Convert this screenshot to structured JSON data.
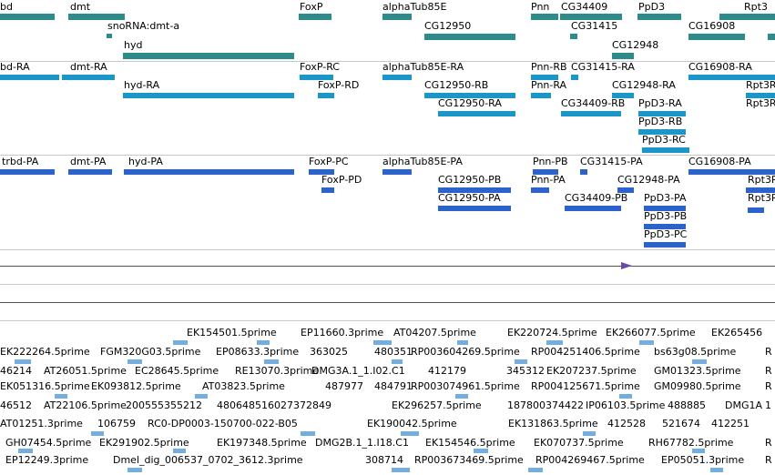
{
  "colors": {
    "gene": "#2e8b8b",
    "transcript": "#1a96c8",
    "protein": "#2b62cc",
    "est": "#74aee0",
    "divider": "#c8c8c8",
    "line": "#555555",
    "marker": "#6a4aa8"
  },
  "gene_track": [
    {
      "id": "g0",
      "label": "bd",
      "bar": true
    },
    {
      "id": "g1",
      "label": "dmt",
      "bar": true
    },
    {
      "id": "g2",
      "label": "snoRNA:dmt-a",
      "bar": true
    },
    {
      "id": "g3",
      "label": "hyd",
      "bar": true
    },
    {
      "id": "g4",
      "label": "FoxP",
      "bar": true
    },
    {
      "id": "g5",
      "label": "alphaTub85E",
      "bar": true
    },
    {
      "id": "g6",
      "label": "CG12950",
      "bar": true
    },
    {
      "id": "g7",
      "label": "Pnn",
      "bar": true
    },
    {
      "id": "g8",
      "label": "CG34409",
      "bar": true
    },
    {
      "id": "g9",
      "label": "CG31415",
      "bar": true
    },
    {
      "id": "g10",
      "label": "PpD3",
      "bar": true
    },
    {
      "id": "g11",
      "label": "CG12948",
      "bar": true
    },
    {
      "id": "g12",
      "label": "CG16908",
      "bar": true
    },
    {
      "id": "g13",
      "label": "Rpt3",
      "bar": true
    }
  ],
  "transcript_track": [
    {
      "id": "t0",
      "label": "bd-RA"
    },
    {
      "id": "t1",
      "label": "dmt-RA"
    },
    {
      "id": "t2",
      "label": "hyd-RA"
    },
    {
      "id": "t3",
      "label": "FoxP-RC"
    },
    {
      "id": "t4",
      "label": "FoxP-RD"
    },
    {
      "id": "t5",
      "label": "alphaTub85E-RA"
    },
    {
      "id": "t6",
      "label": "CG12950-RB"
    },
    {
      "id": "t7",
      "label": "CG12950-RA"
    },
    {
      "id": "t8",
      "label": "Pnn-RB"
    },
    {
      "id": "t9",
      "label": "Pnn-RA"
    },
    {
      "id": "t10",
      "label": "CG31415-RA"
    },
    {
      "id": "t11",
      "label": "CG34409-RB"
    },
    {
      "id": "t12",
      "label": "CG12948-RA"
    },
    {
      "id": "t13",
      "label": "PpD3-RA"
    },
    {
      "id": "t14",
      "label": "PpD3-RB"
    },
    {
      "id": "t15",
      "label": "PpD3-RC"
    },
    {
      "id": "t16",
      "label": "CG16908-RA"
    },
    {
      "id": "t17",
      "label": "Rpt3R"
    },
    {
      "id": "t18",
      "label": "Rpt3R"
    }
  ],
  "protein_track": [
    {
      "id": "p0",
      "label": "trbd-PA"
    },
    {
      "id": "p1",
      "label": "dmt-PA"
    },
    {
      "id": "p2",
      "label": "hyd-PA"
    },
    {
      "id": "p3",
      "label": "FoxP-PC"
    },
    {
      "id": "p4",
      "label": "FoxP-PD"
    },
    {
      "id": "p5",
      "label": "alphaTub85E-PA"
    },
    {
      "id": "p6",
      "label": "CG12950-PB"
    },
    {
      "id": "p7",
      "label": "CG12950-PA"
    },
    {
      "id": "p8",
      "label": "Pnn-PB"
    },
    {
      "id": "p9",
      "label": "Pnn-PA"
    },
    {
      "id": "p10",
      "label": "CG31415-PA"
    },
    {
      "id": "p11",
      "label": "CG34409-PB"
    },
    {
      "id": "p12",
      "label": "CG12948-PA"
    },
    {
      "id": "p13",
      "label": "PpD3-PA"
    },
    {
      "id": "p14",
      "label": "PpD3-PB"
    },
    {
      "id": "p15",
      "label": "PpD3-PC"
    },
    {
      "id": "p16",
      "label": "CG16908-PA"
    },
    {
      "id": "p17",
      "label": "Rpt3P"
    },
    {
      "id": "p18",
      "label": "Rpt3P"
    }
  ],
  "est_track": [
    {
      "id": "e0",
      "label": "EK154501.5prime"
    },
    {
      "id": "e1",
      "label": "EP11660.3prime"
    },
    {
      "id": "e2",
      "label": "AT04207.5prime"
    },
    {
      "id": "e3",
      "label": "EK220724.5prime"
    },
    {
      "id": "e4",
      "label": "EK266077.5prime"
    },
    {
      "id": "e5",
      "label": "EK265456"
    },
    {
      "id": "e6",
      "label": "EK222264.5prime"
    },
    {
      "id": "e7",
      "label": "FGM320G03.5prime"
    },
    {
      "id": "e8",
      "label": "EP08633.3prime"
    },
    {
      "id": "e9",
      "label": "363025"
    },
    {
      "id": "e10",
      "label": "480351"
    },
    {
      "id": "e11",
      "label": "RP003604269.5prime"
    },
    {
      "id": "e12",
      "label": "RP004251406.5prime"
    },
    {
      "id": "e13",
      "label": "bs63g08.5prime"
    },
    {
      "id": "e14",
      "label": "R"
    },
    {
      "id": "e15",
      "label": "46214"
    },
    {
      "id": "e16",
      "label": "AT26051.5prime"
    },
    {
      "id": "e17",
      "label": "EC28645.5prime"
    },
    {
      "id": "e18",
      "label": "RE13070.3prime"
    },
    {
      "id": "e19",
      "label": "DMG3A.1_1.I02.C1"
    },
    {
      "id": "e20",
      "label": "412179"
    },
    {
      "id": "e21",
      "label": "345312"
    },
    {
      "id": "e22",
      "label": "EK207237.5prime"
    },
    {
      "id": "e23",
      "label": "GM01323.5prime"
    },
    {
      "id": "e24",
      "label": "R"
    },
    {
      "id": "e25",
      "label": "EK051316.5prime"
    },
    {
      "id": "e26",
      "label": "EK093812.5prime"
    },
    {
      "id": "e27",
      "label": "AT03823.5prime"
    },
    {
      "id": "e28",
      "label": "487977"
    },
    {
      "id": "e29",
      "label": "484791"
    },
    {
      "id": "e30",
      "label": "RP003074961.5prime"
    },
    {
      "id": "e31",
      "label": "RP004125671.5prime"
    },
    {
      "id": "e32",
      "label": "GM09980.5prime"
    },
    {
      "id": "e33",
      "label": "R"
    },
    {
      "id": "e34",
      "label": "46512"
    },
    {
      "id": "e35",
      "label": "AT22106.5prime"
    },
    {
      "id": "e36",
      "label": "200555355212"
    },
    {
      "id": "e37",
      "label": "480648516027372849"
    },
    {
      "id": "e38",
      "label": "EK296257.5prime"
    },
    {
      "id": "e39",
      "label": "187800374422"
    },
    {
      "id": "e40",
      "label": "IP06103.5prime"
    },
    {
      "id": "e41",
      "label": "488885"
    },
    {
      "id": "e42",
      "label": "DMG1A"
    },
    {
      "id": "e43",
      "label": "1"
    },
    {
      "id": "e44",
      "label": "AT01251.3prime"
    },
    {
      "id": "e45",
      "label": "106759"
    },
    {
      "id": "e46",
      "label": "RC0-DP0003-150700-022-B05"
    },
    {
      "id": "e47",
      "label": "EK190042.5prime"
    },
    {
      "id": "e48",
      "label": "EK131863.5prime"
    },
    {
      "id": "e49",
      "label": "412528"
    },
    {
      "id": "e50",
      "label": "521674"
    },
    {
      "id": "e51",
      "label": "412251"
    },
    {
      "id": "e52",
      "label": "GH07454.5prime"
    },
    {
      "id": "e53",
      "label": "EK291902.5prime"
    },
    {
      "id": "e54",
      "label": "EK197348.5prime"
    },
    {
      "id": "e55",
      "label": "DMG2B.1_1.I18.C1"
    },
    {
      "id": "e56",
      "label": "EK154546.5prime"
    },
    {
      "id": "e57",
      "label": "EK070737.5prime"
    },
    {
      "id": "e58",
      "label": "RH67782.5prime"
    },
    {
      "id": "e59",
      "label": "R"
    },
    {
      "id": "e60",
      "label": "EP12249.3prime"
    },
    {
      "id": "e61",
      "label": "Dmel_dig_006537_0702_3612.3prime"
    },
    {
      "id": "e62",
      "label": "308714"
    },
    {
      "id": "e63",
      "label": "RP003673469.5prime"
    },
    {
      "id": "e64",
      "label": "RP004269467.5prime"
    },
    {
      "id": "e65",
      "label": "EP05051.3prime"
    },
    {
      "id": "e66",
      "label": "R"
    }
  ]
}
